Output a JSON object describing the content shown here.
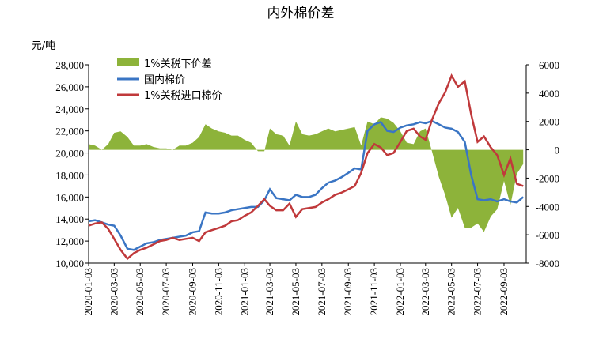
{
  "chart_data": {
    "type": "line",
    "title": "内外棉价差",
    "y_label": "元/吨",
    "xlim": [
      "2020-01-03",
      "2022-10-25"
    ],
    "xticks": [
      "2020-01-03",
      "2020-03-03",
      "2020-05-03",
      "2020-07-03",
      "2020-09-03",
      "2020-11-03",
      "2021-01-03",
      "2021-03-03",
      "2021-05-03",
      "2021-07-03",
      "2021-09-03",
      "2021-11-03",
      "2022-01-03",
      "2022-03-03",
      "2022-05-03",
      "2022-07-03",
      "2022-09-03"
    ],
    "ylim": [
      10000,
      28000
    ],
    "yticks": [
      {
        "value": 10000,
        "label": "10,000"
      },
      {
        "value": 12000,
        "label": "12,000"
      },
      {
        "value": 14000,
        "label": "14,000"
      },
      {
        "value": 16000,
        "label": "16,000"
      },
      {
        "value": 18000,
        "label": "18,000"
      },
      {
        "value": 20000,
        "label": "20,000"
      },
      {
        "value": 22000,
        "label": "22,000"
      },
      {
        "value": 24000,
        "label": "24,000"
      },
      {
        "value": 26000,
        "label": "26,000"
      },
      {
        "value": 28000,
        "label": "28,000"
      }
    ],
    "y2lim": [
      -8000,
      6000
    ],
    "y2ticks": [
      -8000,
      -6000,
      -4000,
      -2000,
      0,
      2000,
      4000,
      6000
    ],
    "x": [
      "2020-01-03",
      "2020-01-18",
      "2020-02-03",
      "2020-02-18",
      "2020-03-03",
      "2020-03-18",
      "2020-04-03",
      "2020-04-18",
      "2020-05-03",
      "2020-05-18",
      "2020-06-03",
      "2020-06-18",
      "2020-07-03",
      "2020-07-18",
      "2020-08-03",
      "2020-08-18",
      "2020-09-03",
      "2020-09-18",
      "2020-10-03",
      "2020-10-18",
      "2020-11-03",
      "2020-11-18",
      "2020-12-03",
      "2020-12-18",
      "2021-01-03",
      "2021-01-18",
      "2021-02-03",
      "2021-02-18",
      "2021-03-03",
      "2021-03-18",
      "2021-04-03",
      "2021-04-18",
      "2021-05-03",
      "2021-05-18",
      "2021-06-03",
      "2021-06-18",
      "2021-07-03",
      "2021-07-18",
      "2021-08-03",
      "2021-08-18",
      "2021-09-03",
      "2021-09-18",
      "2021-10-03",
      "2021-10-18",
      "2021-11-03",
      "2021-11-18",
      "2021-12-03",
      "2021-12-18",
      "2022-01-03",
      "2022-01-18",
      "2022-02-03",
      "2022-02-18",
      "2022-03-03",
      "2022-03-18",
      "2022-04-03",
      "2022-04-18",
      "2022-05-03",
      "2022-05-18",
      "2022-06-03",
      "2022-06-18",
      "2022-07-03",
      "2022-07-18",
      "2022-08-03",
      "2022-08-18",
      "2022-09-03",
      "2022-09-18",
      "2022-10-03",
      "2022-10-18"
    ],
    "series": [
      {
        "name": "1%关税下价差",
        "color": "#8db33a",
        "axis": "y2",
        "kind": "area",
        "values": [
          400,
          300,
          0,
          400,
          1200,
          1300,
          900,
          300,
          300,
          400,
          200,
          100,
          100,
          0,
          300,
          300,
          500,
          900,
          1800,
          1500,
          1300,
          1200,
          1000,
          1000,
          700,
          500,
          -100,
          -100,
          1500,
          1100,
          1000,
          300,
          2000,
          1100,
          1000,
          1100,
          1300,
          1500,
          1300,
          1400,
          1500,
          1600,
          300,
          2000,
          1800,
          2300,
          2200,
          1900,
          1300,
          500,
          400,
          1300,
          1500,
          -100,
          -1900,
          -3200,
          -4800,
          -4100,
          -5500,
          -5500,
          -5200,
          -5800,
          -4700,
          -4200,
          -2200,
          -3900,
          -1700,
          -1000
        ]
      },
      {
        "name": "国内棉价",
        "color": "#3a75c4",
        "kind": "line",
        "values": [
          13800,
          13900,
          13700,
          13500,
          13400,
          12500,
          11300,
          11200,
          11500,
          11800,
          11900,
          12100,
          12200,
          12300,
          12400,
          12500,
          12800,
          12900,
          14600,
          14500,
          14500,
          14600,
          14800,
          14900,
          15000,
          15100,
          15100,
          15700,
          16700,
          15900,
          15800,
          15700,
          16200,
          16000,
          16000,
          16200,
          16800,
          17300,
          17500,
          17800,
          18200,
          18600,
          18500,
          22000,
          22600,
          22800,
          22000,
          21900,
          22300,
          22500,
          22600,
          22800,
          22700,
          22900,
          22600,
          22300,
          22200,
          21900,
          21000,
          18000,
          15800,
          15700,
          15800,
          15600,
          15800,
          15600,
          15500,
          16000
        ]
      },
      {
        "name": "1%关税进口棉价",
        "color": "#c0393b",
        "kind": "line",
        "values": [
          13400,
          13600,
          13700,
          13100,
          12200,
          11200,
          10400,
          10900,
          11200,
          11400,
          11700,
          12000,
          12100,
          12300,
          12100,
          12200,
          12300,
          12000,
          12800,
          13000,
          13200,
          13400,
          13800,
          13900,
          14300,
          14600,
          15200,
          15800,
          15200,
          14800,
          14800,
          15400,
          14200,
          14900,
          15000,
          15100,
          15500,
          15800,
          16200,
          16400,
          16700,
          17000,
          18200,
          20000,
          20800,
          20500,
          19800,
          20000,
          21000,
          22000,
          22200,
          21500,
          21200,
          23000,
          24500,
          25500,
          27000,
          26000,
          26500,
          23500,
          21000,
          21500,
          20500,
          19800,
          18000,
          19500,
          17200,
          17000
        ]
      }
    ]
  }
}
